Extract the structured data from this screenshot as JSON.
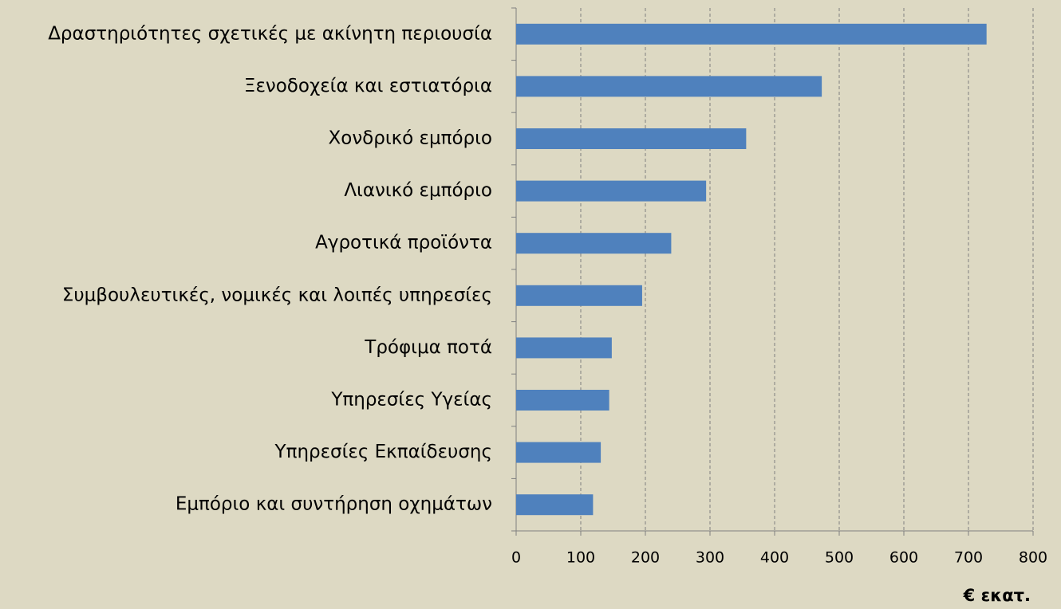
{
  "chart_data": {
    "type": "barh",
    "categories": [
      "Δραστηριότητες σχετικές με ακίνητη περιουσία",
      "Ξενοδοχεία και εστιατόρια",
      "Χονδρικό εμπόριο",
      "Λιανικό εμπόριο",
      "Αγροτικά προϊόντα",
      "Συμβουλευτικές, νομικές και λοιπές υπηρεσίες",
      "Τρόφιμα ποτά",
      "Υπηρεσίες Υγείας",
      "Υπηρεσίες Εκπαίδευσης",
      "Εμπόριο και συντήρηση οχημάτων"
    ],
    "values": [
      728,
      473,
      356,
      294,
      240,
      195,
      148,
      144,
      131,
      119
    ],
    "color": "#4f81bd",
    "xlim": [
      0,
      800
    ],
    "xticks": [
      0,
      100,
      200,
      300,
      400,
      500,
      600,
      700,
      800
    ],
    "xlabel": "€ εκατ.",
    "grid": true
  }
}
